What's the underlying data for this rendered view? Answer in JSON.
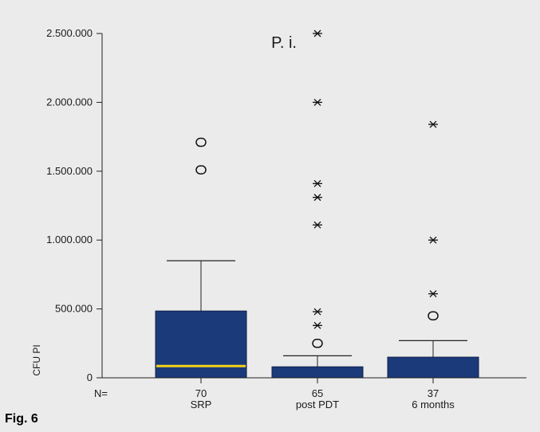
{
  "figure_label": "Fig. 6",
  "chart_data": {
    "type": "boxplot",
    "title": "P. i.",
    "ylabel": "CFU PI",
    "n_prefix": "N=",
    "ylim": [
      0,
      2500000
    ],
    "yticks": [
      0,
      500000,
      1000000,
      1500000,
      2000000,
      2500000
    ],
    "ytick_labels": [
      "0",
      "500.000",
      "1.000.000",
      "1.500.000",
      "2.000.000",
      "2.500.000"
    ],
    "categories": [
      "SRP",
      "post PDT",
      "6 months"
    ],
    "n": [
      "70",
      "65",
      "37"
    ],
    "boxes": [
      {
        "category": "SRP",
        "q1": 0,
        "median": 85000,
        "q3": 485000,
        "whisker_high": 850000,
        "outliers_circle": [
          1510000,
          1710000
        ],
        "outliers_star": []
      },
      {
        "category": "post PDT",
        "q1": 0,
        "median": 0,
        "q3": 80000,
        "whisker_high": 160000,
        "outliers_circle": [
          250000
        ],
        "outliers_star": [
          380000,
          480000,
          1110000,
          1310000,
          1410000,
          2000000,
          2500000
        ]
      },
      {
        "category": "6 months",
        "q1": 0,
        "median": 0,
        "q3": 150000,
        "whisker_high": 270000,
        "outliers_circle": [
          450000
        ],
        "outliers_star": [
          610000,
          1000000,
          1840000
        ]
      }
    ],
    "colors": {
      "box": "#1b3a7a",
      "median": "#f2d21b",
      "background": "#ebebeb"
    },
    "grid": false,
    "legend": "none"
  }
}
